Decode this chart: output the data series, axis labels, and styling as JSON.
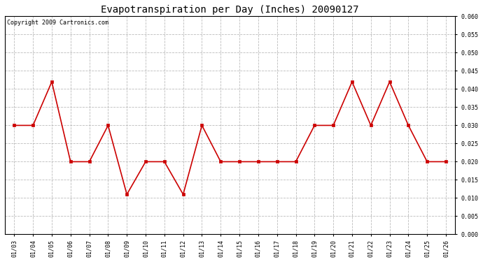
{
  "title": "Evapotranspiration per Day (Inches) 20090127",
  "copyright_text": "Copyright 2009 Cartronics.com",
  "labels": [
    "01/03",
    "01/04",
    "01/05",
    "01/06",
    "01/07",
    "01/08",
    "01/09",
    "01/10",
    "01/11",
    "01/12",
    "01/13",
    "01/14",
    "01/15",
    "01/16",
    "01/17",
    "01/18",
    "01/19",
    "01/20",
    "01/21",
    "01/22",
    "01/23",
    "01/24",
    "01/25",
    "01/26"
  ],
  "values": [
    0.03,
    0.03,
    0.042,
    0.02,
    0.02,
    0.03,
    0.011,
    0.02,
    0.02,
    0.011,
    0.03,
    0.02,
    0.02,
    0.02,
    0.02,
    0.02,
    0.03,
    0.03,
    0.042,
    0.03,
    0.042,
    0.03,
    0.02,
    0.02
  ],
  "line_color": "#cc0000",
  "marker": "s",
  "marker_size": 2.5,
  "ylim": [
    0.0,
    0.06
  ],
  "ytick_step": 0.005,
  "background_color": "#ffffff",
  "plot_bg_color": "#ffffff",
  "grid_color": "#aaaaaa",
  "title_fontsize": 10,
  "copyright_fontsize": 6,
  "tick_fontsize": 6,
  "line_width": 1.2
}
